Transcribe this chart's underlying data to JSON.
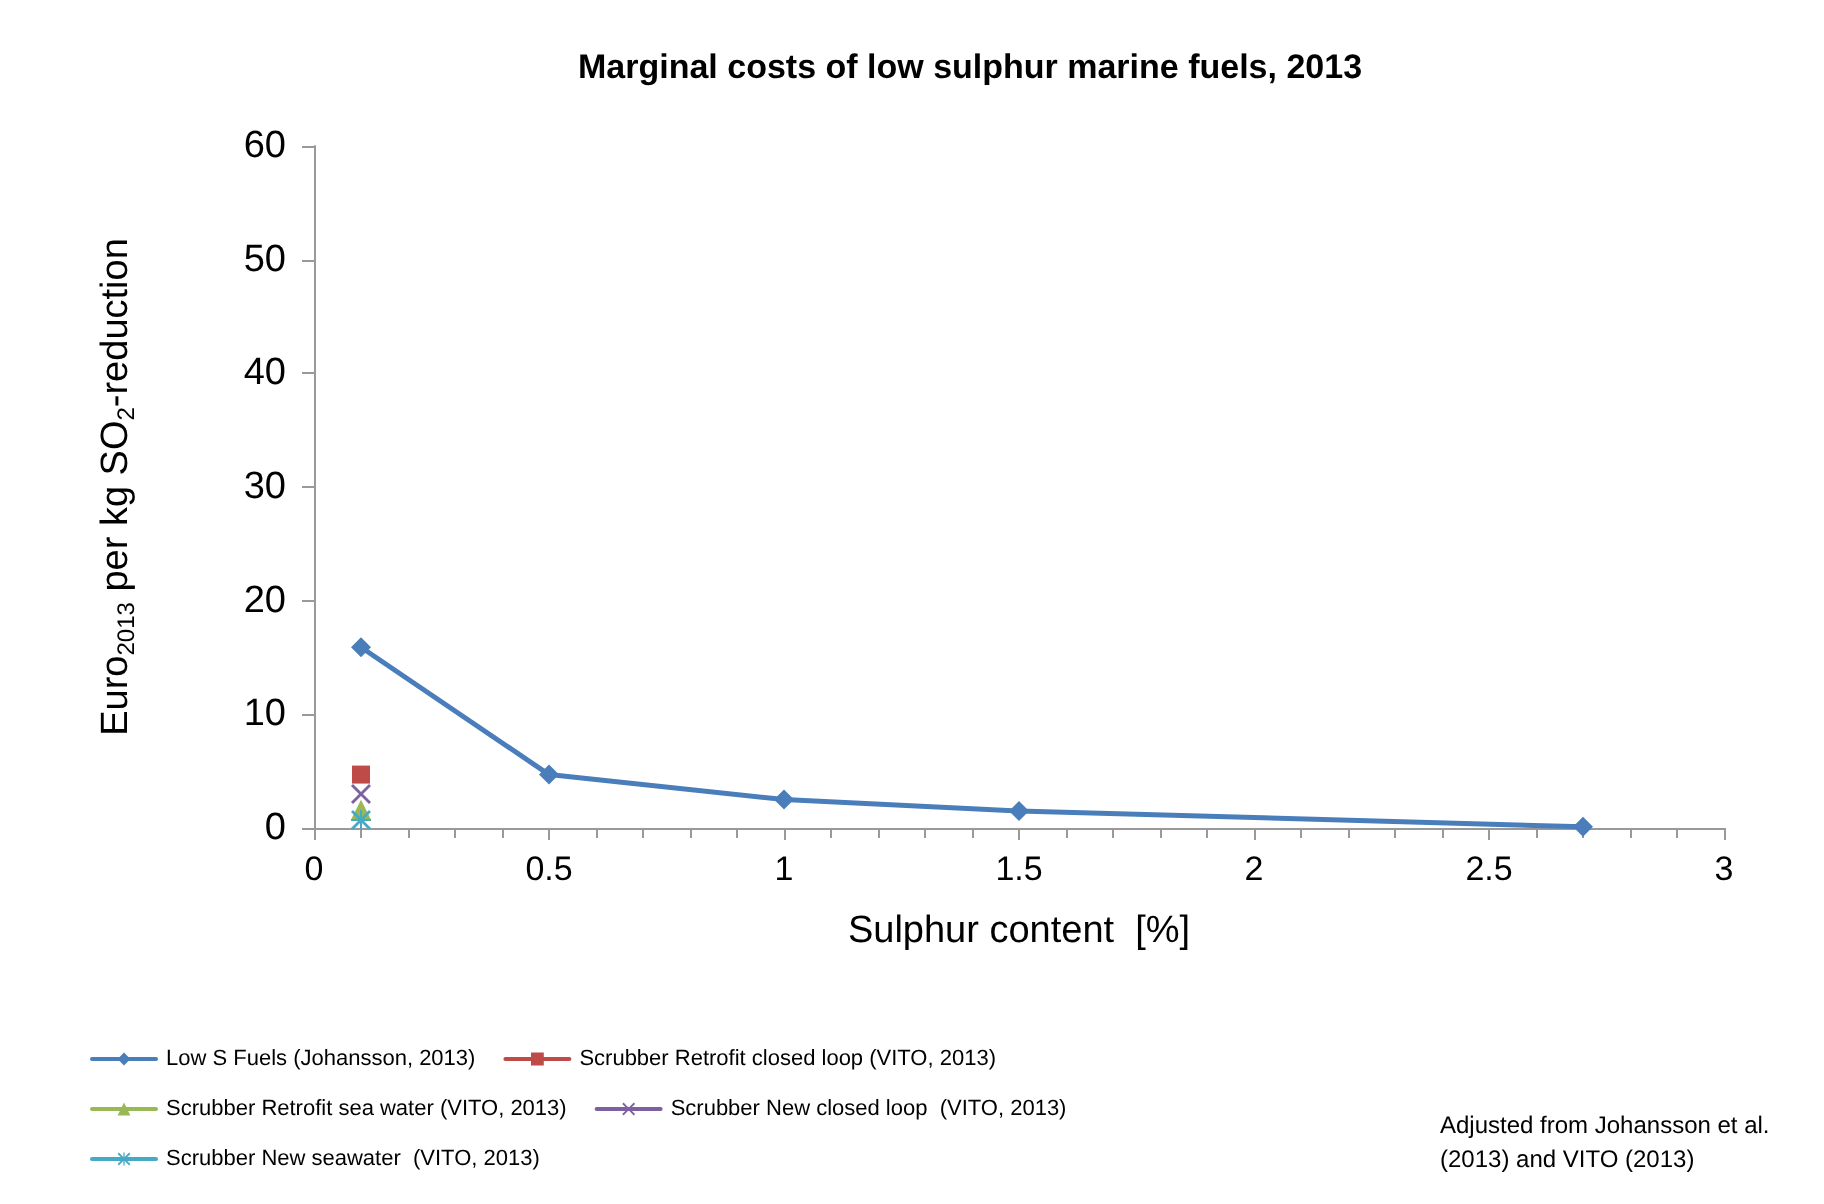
{
  "chart_data": {
    "type": "line",
    "title": "Marginal costs of low sulphur marine fuels, 2013",
    "xlabel": "Sulphur content  [%]",
    "ylabel": "Euro$_{2013}$ per kg SO$_{2}$-reduction",
    "series": [
      {
        "name": "Low S Fuels (Johansson, 2013)",
        "color": "#4a7ebb",
        "marker": "diamond",
        "x": [
          0.1,
          0.5,
          1,
          1.5,
          2.7
        ],
        "values": [
          15.9,
          4.7,
          2.5,
          1.5,
          0.1
        ]
      },
      {
        "name": "Scrubber Retrofit closed loop (VITO, 2013)",
        "color": "#be4b48",
        "marker": "square",
        "x": [
          0.1
        ],
        "values": [
          4.7
        ]
      },
      {
        "name": "Scrubber Retrofit sea water (VITO, 2013)",
        "color": "#98b954",
        "marker": "triangle",
        "x": [
          0.1
        ],
        "values": [
          1.6
        ]
      },
      {
        "name": "Scrubber New closed loop  (VITO, 2013)",
        "color": "#7d60a0",
        "marker": "cross",
        "x": [
          0.1
        ],
        "values": [
          3.0
        ]
      },
      {
        "name": "Scrubber New seawater  (VITO, 2013)",
        "color": "#46aac5",
        "marker": "star",
        "x": [
          0.1
        ],
        "values": [
          0.7
        ]
      }
    ],
    "xlim": [
      0,
      3
    ],
    "xticks": [
      0,
      0.5,
      1,
      1.5,
      2,
      2.5,
      3
    ],
    "ylim": [
      0,
      60
    ],
    "yticks": [
      0,
      10,
      20,
      30,
      40,
      50,
      60
    ],
    "grid": false,
    "legend": "bottom left",
    "annotations": [
      "Adjusted from Johansson et al. (2013) and VITO (2013)"
    ]
  }
}
